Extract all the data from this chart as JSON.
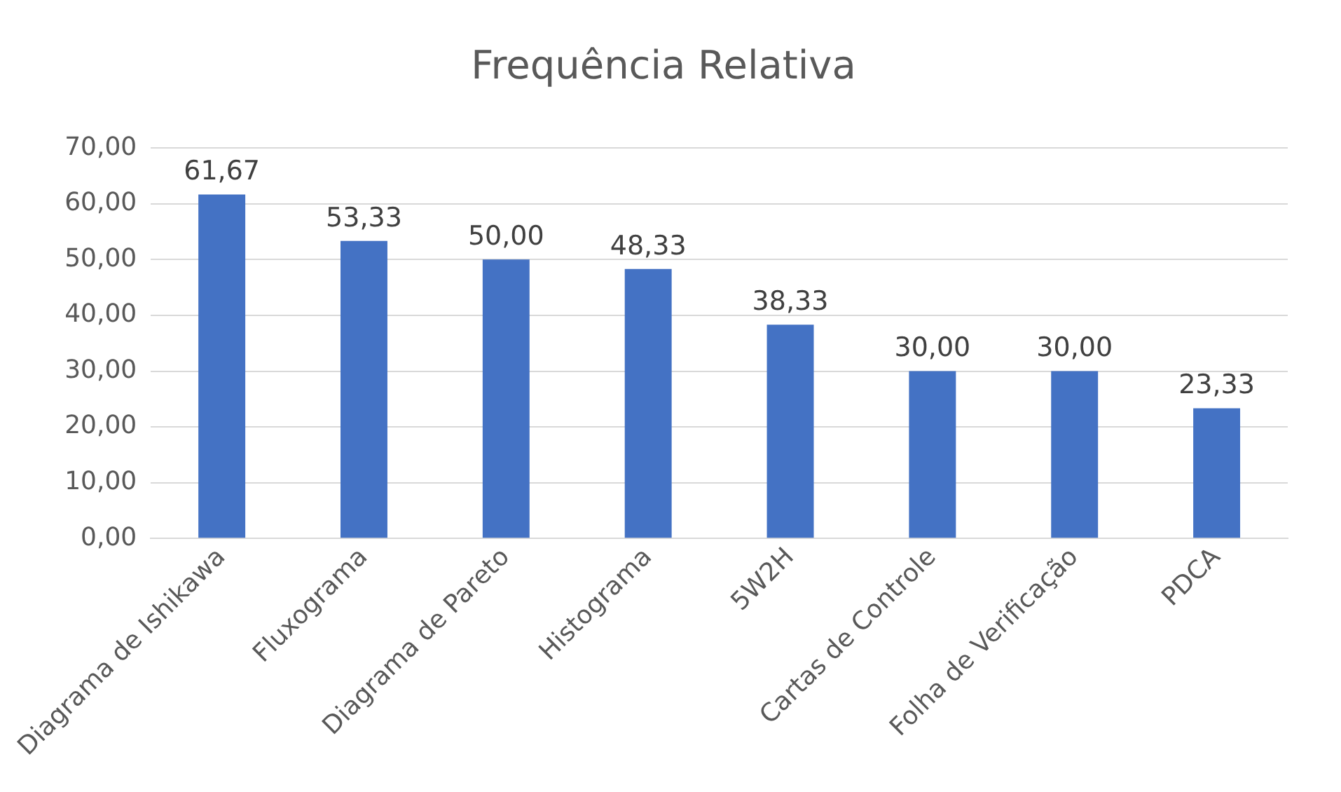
{
  "chart_data": {
    "type": "bar",
    "title": "Frequência Relativa",
    "categories": [
      "Diagrama de Ishikawa",
      "Fluxograma",
      "Diagrama de Pareto",
      "Histograma",
      "5W2H",
      "Cartas de Controle",
      "Folha de Verificação",
      "PDCA"
    ],
    "values": [
      61.67,
      53.33,
      50,
      48.33,
      38.33,
      30,
      30,
      23.33
    ],
    "color": "#4472c4",
    "ylim": [
      0,
      70
    ],
    "yticks": [
      {
        "value": 0,
        "label": "0,00"
      },
      {
        "value": 10,
        "label": "10,00"
      },
      {
        "value": 20,
        "label": "20,00"
      },
      {
        "value": 30,
        "label": "30,00"
      },
      {
        "value": 40,
        "label": "40,00"
      },
      {
        "value": 50,
        "label": "50,00"
      },
      {
        "value": 60,
        "label": "60,00"
      },
      {
        "value": 70,
        "label": "70,00"
      }
    ],
    "value_labels": [
      "61,67",
      "53,33",
      "50,00",
      "48,33",
      "38,33",
      "30,00",
      "30,00",
      "23,33"
    ],
    "grid": "y",
    "legend": false
  }
}
